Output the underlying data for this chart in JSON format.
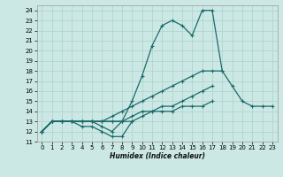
{
  "title": "",
  "xlabel": "Humidex (Indice chaleur)",
  "background_color": "#cce8e4",
  "grid_color": "#b0d4d0",
  "line_color": "#1a6b6b",
  "xlim": [
    -0.5,
    23.5
  ],
  "ylim": [
    11,
    24.5
  ],
  "xticks": [
    0,
    1,
    2,
    3,
    4,
    5,
    6,
    7,
    8,
    9,
    10,
    11,
    12,
    13,
    14,
    15,
    16,
    17,
    18,
    19,
    20,
    21,
    22,
    23
  ],
  "yticks": [
    11,
    12,
    13,
    14,
    15,
    16,
    17,
    18,
    19,
    20,
    21,
    22,
    23,
    24
  ],
  "lines": [
    {
      "x": [
        0,
        1,
        2,
        3,
        4,
        5,
        6,
        7,
        8,
        9
      ],
      "y": [
        12,
        13,
        13,
        13,
        12.5,
        12.5,
        12,
        11.5,
        11.5,
        13
      ]
    },
    {
      "x": [
        0,
        1,
        2,
        3,
        4,
        5,
        6,
        7,
        8,
        9,
        10,
        11,
        12,
        13,
        14,
        15,
        16,
        17,
        18,
        19,
        20,
        21,
        22,
        23
      ],
      "y": [
        12,
        13,
        13,
        13,
        13,
        13,
        12.5,
        12,
        13,
        15,
        17.5,
        20.5,
        22.5,
        23,
        22.5,
        21.5,
        24,
        24,
        18,
        16.5,
        15,
        14.5,
        14.5,
        14.5
      ]
    },
    {
      "x": [
        0,
        1,
        2,
        3,
        4,
        5,
        6,
        7,
        8,
        9,
        10,
        11,
        12,
        13,
        14,
        15,
        16,
        17,
        18,
        19,
        20,
        21,
        22,
        23
      ],
      "y": [
        12,
        13,
        13,
        13,
        13,
        13,
        13,
        13.5,
        14,
        14.5,
        15,
        15.5,
        16,
        16.5,
        17,
        17.5,
        18,
        18,
        18,
        null,
        null,
        null,
        null,
        null
      ]
    },
    {
      "x": [
        0,
        1,
        2,
        3,
        4,
        5,
        6,
        7,
        8,
        9,
        10,
        11,
        12,
        13,
        14,
        15,
        16,
        17,
        18,
        19,
        20,
        21,
        22,
        23
      ],
      "y": [
        12,
        13,
        13,
        13,
        13,
        13,
        13,
        13,
        13,
        13.5,
        14,
        14,
        14.5,
        14.5,
        15,
        15.5,
        16,
        16.5,
        null,
        null,
        null,
        null,
        null,
        null
      ]
    },
    {
      "x": [
        0,
        1,
        2,
        3,
        4,
        5,
        6,
        7,
        8,
        9,
        10,
        11,
        12,
        13,
        14,
        15,
        16,
        17,
        18,
        19,
        20,
        21,
        22,
        23
      ],
      "y": [
        12,
        13,
        13,
        13,
        13,
        13,
        13,
        13,
        13,
        13,
        13.5,
        14,
        14,
        14,
        14.5,
        14.5,
        14.5,
        15,
        null,
        null,
        null,
        null,
        null,
        null
      ]
    }
  ]
}
